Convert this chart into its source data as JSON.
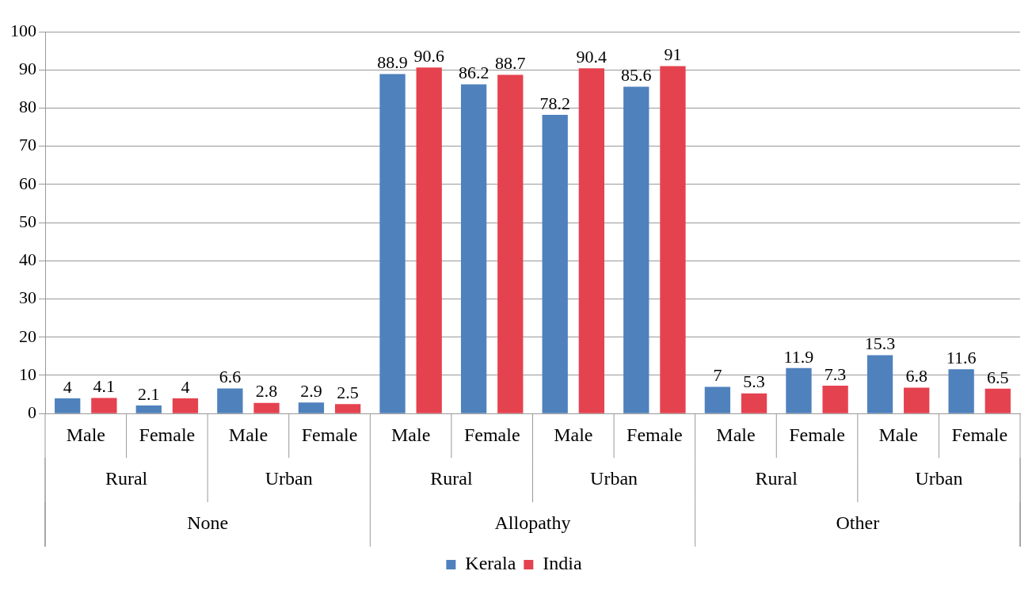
{
  "chart_data": {
    "type": "bar",
    "categories": [
      "Male",
      "Female",
      "Male",
      "Female",
      "Male",
      "Female",
      "Male",
      "Female",
      "Male",
      "Female",
      "Male",
      "Female"
    ],
    "series": [
      {
        "name": "Kerala",
        "color": "#4f81bd",
        "values": [
          4,
          2.1,
          6.6,
          2.9,
          88.9,
          86.2,
          78.2,
          85.6,
          7,
          11.9,
          15.3,
          11.6
        ]
      },
      {
        "name": "India",
        "color": "#e5424f",
        "values": [
          4.1,
          4,
          2.8,
          2.5,
          90.6,
          88.7,
          90.4,
          91,
          5.3,
          7.3,
          6.8,
          6.5
        ]
      }
    ],
    "annotations": [
      "Rural",
      "Urban",
      "Rural",
      "Urban",
      "Rural",
      "Urban",
      "None",
      "Allopathy",
      "Other"
    ],
    "ylim": [
      0,
      100
    ],
    "yticks": [
      0,
      10,
      20,
      30,
      40,
      50,
      60,
      70,
      80,
      90,
      100
    ],
    "grid": "y",
    "legend": "bottom",
    "data_labels": true
  }
}
